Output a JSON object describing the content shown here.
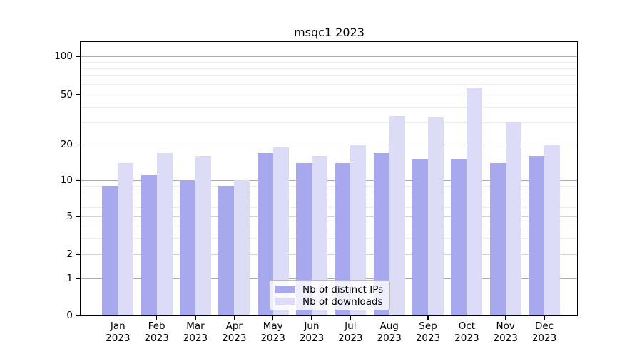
{
  "chart_data": {
    "type": "bar",
    "title": "msqc1 2023",
    "categories": [
      "Jan",
      "Feb",
      "Mar",
      "Apr",
      "May",
      "Jun",
      "Jul",
      "Aug",
      "Sep",
      "Oct",
      "Nov",
      "Dec"
    ],
    "year_label": "2023",
    "series": [
      {
        "name": "Nb of distinct IPs",
        "key": "distinct-ips",
        "color": "#a8a8ef",
        "values": [
          9,
          11,
          10,
          9,
          17,
          14,
          14,
          17,
          15,
          15,
          14,
          16
        ]
      },
      {
        "name": "Nb of downloads",
        "key": "downloads",
        "color": "#dcdcf7",
        "values": [
          14,
          17,
          16,
          10,
          19,
          16,
          20,
          34,
          33,
          57,
          30,
          20
        ]
      }
    ],
    "xlabel": "",
    "ylabel": "",
    "y_scale": "log-like with zero baseline",
    "y_major_ticks": [
      0,
      1,
      2,
      5,
      10,
      20,
      50,
      100
    ],
    "y_minor_ticks": [
      3,
      4,
      6,
      7,
      8,
      9,
      30,
      40,
      60,
      70,
      80,
      90
    ],
    "ylim": [
      0,
      130
    ],
    "grid": "on",
    "legend_position": "bottom-center",
    "colors": {
      "bar_distinct_ips": "#a8a8ef",
      "bar_downloads": "#dcdcf7",
      "decade_grid": "#ababab",
      "major_grid": "#d2d2d2",
      "minor_grid": "#ededed",
      "axis": "#000000"
    }
  }
}
